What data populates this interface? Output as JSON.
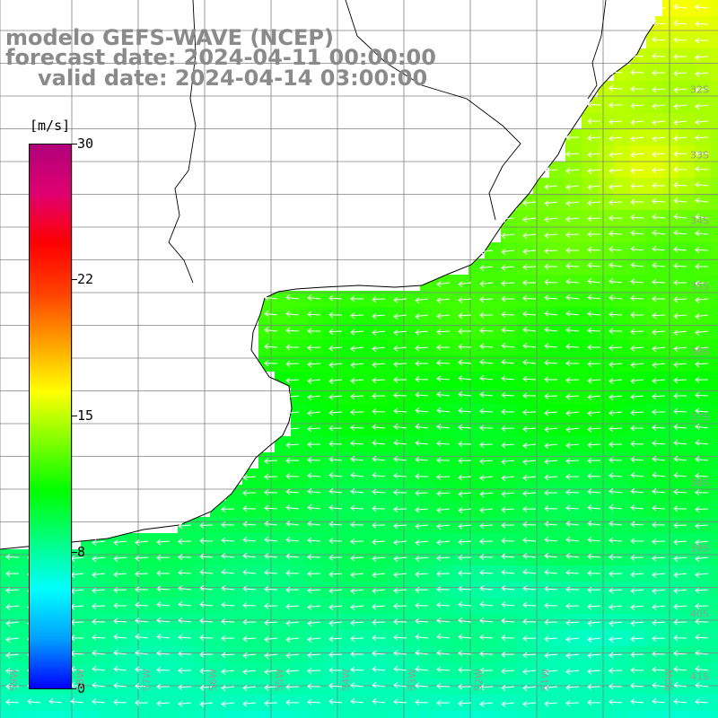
{
  "header": {
    "title_model": "modelo GEFS-WAVE (NCEP)",
    "title_forecast": "forecast date: 2024-04-11 00:00:00",
    "title_valid": "valid date: 2024-04-14 03:00:00"
  },
  "colorbar": {
    "unit": "[m/s]",
    "ticks": [
      "0",
      "8",
      "15",
      "22",
      "30"
    ],
    "tick_values": [
      0,
      8,
      15,
      22,
      30
    ],
    "min": 0,
    "max": 30,
    "colors": [
      "#0000ff",
      "#00a0ff",
      "#00ffff",
      "#00ff80",
      "#00ff00",
      "#80ff00",
      "#ffff00",
      "#ffa000",
      "#ff4000",
      "#ff0000",
      "#e00070",
      "#b0007a"
    ]
  },
  "map": {
    "land_color": "#ffffff",
    "coast_color": "#000000",
    "grid_color": "#808080",
    "vector_color": "#ffffff",
    "lat_labels": [
      "32S",
      "33S",
      "34S",
      "35S",
      "36S",
      "37S",
      "38S",
      "39S",
      "40S",
      "41S"
    ],
    "lon_labels": [
      "59W",
      "58W",
      "57W",
      "56W",
      "55W",
      "54W",
      "53W",
      "52W",
      "51W",
      "50W"
    ]
  }
}
